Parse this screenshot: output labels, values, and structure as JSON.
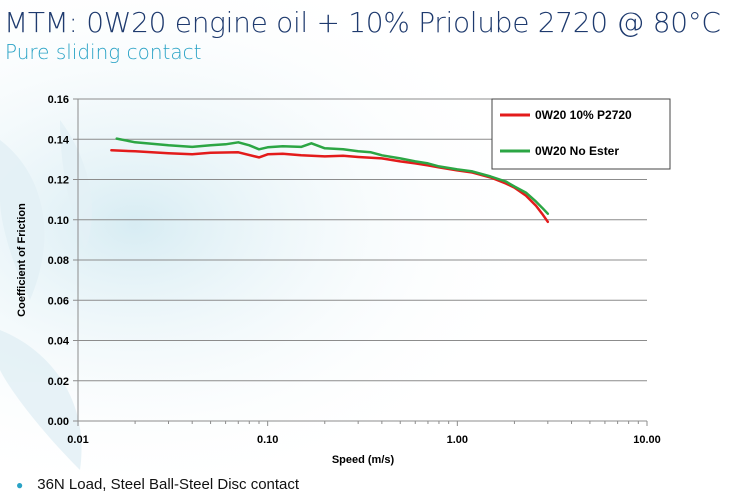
{
  "slide": {
    "title": "MTM: 0W20 engine oil + 10% Priolube 2720 @ 80°C",
    "subtitle": "Pure sliding contact",
    "bullets": [
      "36N Load, Steel Ball-Steel Disc contact"
    ]
  },
  "colors": {
    "red_series": "#e31b1b",
    "green_series": "#2ca644",
    "title": "#1e3a6e",
    "subtitle": "#2aa3c6"
  },
  "chart_data": {
    "type": "line",
    "title": "",
    "xlabel": "Speed (m/s)",
    "ylabel": "Coefficient of Friction",
    "x_scale": "log",
    "xlim": [
      0.01,
      10
    ],
    "ylim": [
      0,
      0.16
    ],
    "x_ticks": [
      0.01,
      0.1,
      1,
      10
    ],
    "x_tick_labels": [
      "0.01",
      "0.10",
      "1.00",
      "10.00"
    ],
    "y_ticks": [
      0,
      0.02,
      0.04,
      0.06,
      0.08,
      0.1,
      0.12,
      0.14,
      0.16
    ],
    "y_tick_labels": [
      "0.00",
      "0.02",
      "0.04",
      "0.06",
      "0.08",
      "0.10",
      "0.12",
      "0.14",
      "0.16"
    ],
    "grid": "horizontal",
    "legend_position": "top-right",
    "series": [
      {
        "name": "0W20 10% P2720",
        "color": "#e31b1b",
        "x": [
          0.015,
          0.02,
          0.03,
          0.04,
          0.05,
          0.07,
          0.09,
          0.1,
          0.12,
          0.15,
          0.2,
          0.25,
          0.3,
          0.4,
          0.5,
          0.6,
          0.7,
          0.8,
          1.0,
          1.2,
          1.5,
          1.8,
          2.0,
          2.3,
          2.6,
          2.8,
          3.0
        ],
        "y": [
          0.1345,
          0.134,
          0.133,
          0.1325,
          0.1333,
          0.1335,
          0.131,
          0.1325,
          0.1328,
          0.132,
          0.1315,
          0.1318,
          0.1312,
          0.1305,
          0.129,
          0.128,
          0.127,
          0.126,
          0.1245,
          0.1235,
          0.121,
          0.118,
          0.116,
          0.112,
          0.107,
          0.103,
          0.099
        ]
      },
      {
        "name": "0W20 No Ester",
        "color": "#2ca644",
        "x": [
          0.016,
          0.02,
          0.03,
          0.04,
          0.05,
          0.06,
          0.07,
          0.08,
          0.09,
          0.1,
          0.12,
          0.15,
          0.17,
          0.2,
          0.25,
          0.3,
          0.35,
          0.4,
          0.5,
          0.6,
          0.7,
          0.8,
          1.0,
          1.2,
          1.5,
          1.8,
          2.0,
          2.3,
          2.6,
          2.8,
          3.0
        ],
        "y": [
          0.1403,
          0.1385,
          0.137,
          0.1362,
          0.137,
          0.1375,
          0.1385,
          0.137,
          0.135,
          0.136,
          0.1365,
          0.1362,
          0.138,
          0.1355,
          0.135,
          0.134,
          0.1335,
          0.132,
          0.1305,
          0.129,
          0.128,
          0.1265,
          0.125,
          0.124,
          0.1215,
          0.119,
          0.1165,
          0.1135,
          0.109,
          0.106,
          0.103
        ]
      }
    ]
  }
}
